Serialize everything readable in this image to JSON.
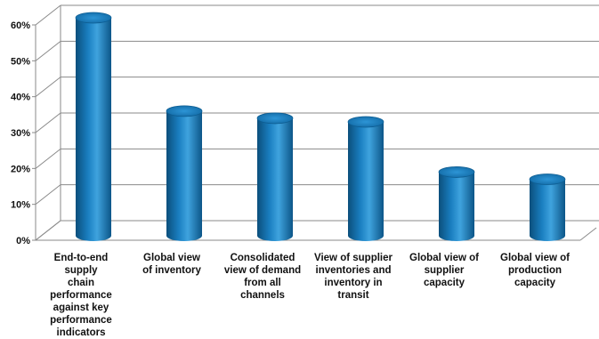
{
  "chart_data": {
    "type": "bar",
    "style": "3d-cylinder",
    "categories": [
      "End-to-end supply chain performance against key performance indicators",
      "Global view of inventory",
      "Consolidated view of demand from all channels",
      "View of supplier inventories and inventory in transit",
      "Global view of supplier capacity",
      "Global view of production capacity"
    ],
    "category_lines": [
      [
        "End-to-end supply",
        "chain performance",
        "against key",
        "performance",
        "indicators"
      ],
      [
        "Global view",
        "of inventory"
      ],
      [
        "Consolidated",
        "view of demand",
        "from all",
        "channels"
      ],
      [
        "View of supplier",
        "inventories and",
        "inventory in",
        "transit"
      ],
      [
        "Global view of",
        "supplier",
        "capacity"
      ],
      [
        "Global view of",
        "production",
        "capacity"
      ]
    ],
    "values": [
      60,
      34,
      32,
      31,
      17,
      15
    ],
    "ylim": [
      0,
      60
    ],
    "yticks": [
      "0%",
      "10%",
      "20%",
      "30%",
      "40%",
      "50%",
      "60%"
    ],
    "grid": true,
    "colors": {
      "bar": "#1a7fc1",
      "bar_dark": "#0b4f7c",
      "bar_light": "#6ec3f2",
      "grid": "#8a8a8a",
      "wall": "#ffffff"
    }
  }
}
